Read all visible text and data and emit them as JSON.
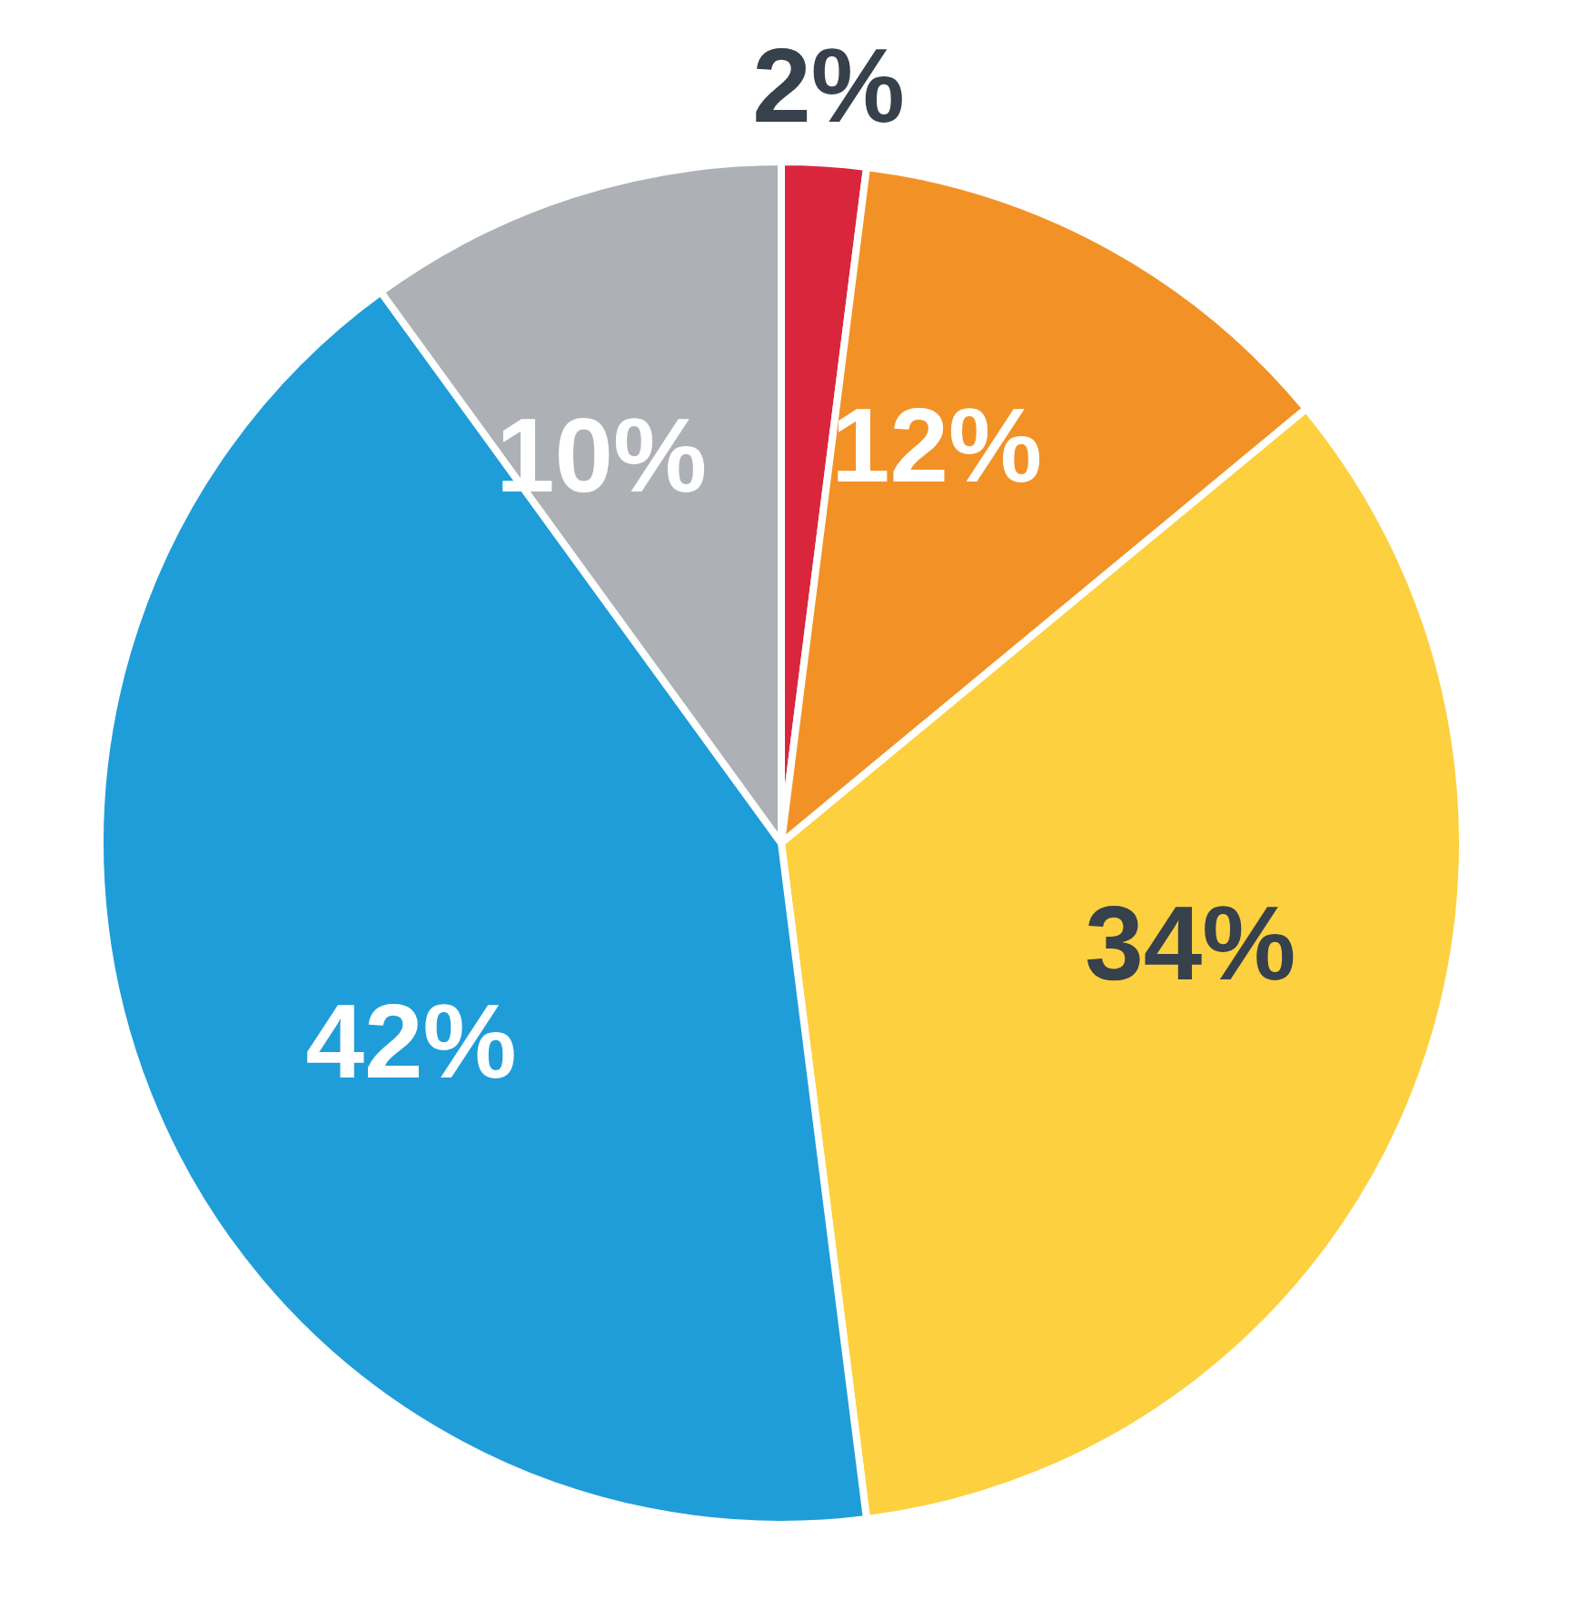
{
  "chart_data": {
    "type": "pie",
    "categories": [
      null,
      null,
      null,
      null,
      null
    ],
    "values": [
      2,
      12,
      34,
      42,
      10
    ],
    "colors": [
      "#d9263d",
      "#f29226",
      "#fdd03f",
      "#1f9dd9",
      "#adb1b6"
    ],
    "value_labels": [
      "2%",
      "12%",
      "34%",
      "42%",
      "10%"
    ],
    "legend": false
  }
}
